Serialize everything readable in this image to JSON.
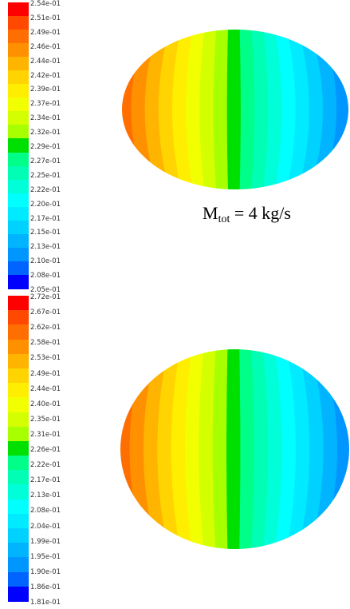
{
  "charts": [
    {
      "caption": "",
      "colorbar_labels": [
        "2.54e-01",
        "2.51e-01",
        "2.49e-01",
        "2.46e-01",
        "2.44e-01",
        "2.42e-01",
        "2.39e-01",
        "2.37e-01",
        "2.34e-01",
        "2.32e-01",
        "2.29e-01",
        "2.27e-01",
        "2.25e-01",
        "2.22e-01",
        "2.20e-01",
        "2.17e-01",
        "2.15e-01",
        "2.13e-01",
        "2.10e-01",
        "2.08e-01",
        "2.05e-01"
      ]
    },
    {
      "caption": "",
      "colorbar_labels": [
        "2.72e-01",
        "2.67e-01",
        "2.62e-01",
        "2.58e-01",
        "2.53e-01",
        "2.49e-01",
        "2.44e-01",
        "2.40e-01",
        "2.35e-01",
        "2.31e-01",
        "2.26e-01",
        "2.22e-01",
        "2.17e-01",
        "2.13e-01",
        "2.08e-01",
        "2.04e-01",
        "1.99e-01",
        "1.95e-01",
        "1.90e-01",
        "1.86e-01",
        "1.81e-01"
      ]
    }
  ],
  "caption_mid": {
    "prefix": "M",
    "sub": "tot",
    "suffix": " = 4 kg/s"
  },
  "colormap": [
    "#ff0000",
    "#ff4800",
    "#ff6e00",
    "#ff9100",
    "#ffb400",
    "#ffd400",
    "#ffee00",
    "#f2ff00",
    "#d4ff00",
    "#a8ff00",
    "#00e000",
    "#00ff88",
    "#00ffb4",
    "#00ffd8",
    "#00ffff",
    "#00ebff",
    "#00d2ff",
    "#00b4ff",
    "#0096ff",
    "#0064ff",
    "#0000ff"
  ],
  "chart_data": [
    {
      "type": "heatmap",
      "title": "",
      "description": "circular contour plot, value decreasing from left (max) to right (min) in vertical bands",
      "colorbar_max": 0.254,
      "colorbar_min": 0.205,
      "levels": [
        0.254,
        0.251,
        0.249,
        0.246,
        0.244,
        0.242,
        0.239,
        0.237,
        0.234,
        0.232,
        0.229,
        0.227,
        0.225,
        0.222,
        0.22,
        0.217,
        0.215,
        0.213,
        0.21,
        0.208,
        0.205
      ]
    },
    {
      "type": "heatmap",
      "title": "",
      "description": "circular contour plot, value decreasing from left (max) to right (min) in vertical bands",
      "colorbar_max": 0.272,
      "colorbar_min": 0.181,
      "levels": [
        0.272,
        0.267,
        0.262,
        0.258,
        0.253,
        0.249,
        0.244,
        0.24,
        0.235,
        0.231,
        0.226,
        0.222,
        0.217,
        0.213,
        0.208,
        0.204,
        0.199,
        0.195,
        0.19,
        0.186,
        0.181
      ]
    }
  ]
}
